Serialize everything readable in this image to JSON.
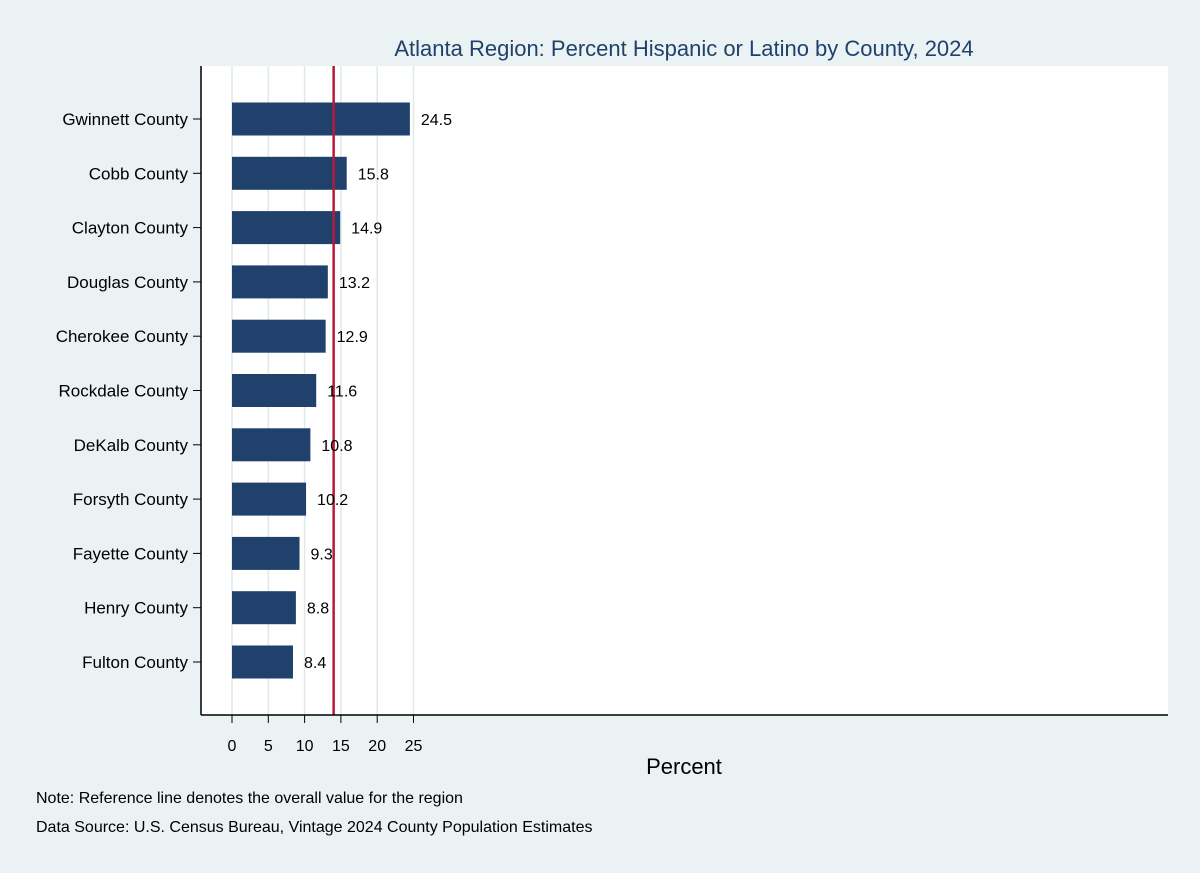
{
  "chart_data": {
    "type": "bar",
    "orientation": "horizontal",
    "title": "Atlanta Region: Percent Hispanic or Latino by County, 2024",
    "xlabel": "Percent",
    "ylabel": "",
    "categories": [
      "Gwinnett County",
      "Cobb County",
      "Clayton County",
      "Douglas County",
      "Cherokee County",
      "Rockdale County",
      "DeKalb County",
      "Forsyth County",
      "Fayette County",
      "Henry County",
      "Fulton County"
    ],
    "values": [
      24.5,
      15.8,
      14.9,
      13.2,
      12.9,
      11.6,
      10.8,
      10.2,
      9.3,
      8.8,
      8.4
    ],
    "data_labels": [
      "24.5",
      "15.8",
      "14.9",
      "13.2",
      "12.9",
      "11.6",
      "10.8",
      "10.2",
      "9.3",
      "8.8",
      "8.4"
    ],
    "xlim": [
      0,
      25
    ],
    "xticks": [
      0,
      5,
      10,
      15,
      20,
      25
    ],
    "reference_line": 14,
    "grid": "vertical",
    "legend": "none",
    "colors": {
      "bar": "#1f416b",
      "reference_line": "#b8183a",
      "background": "#eaf2f3",
      "plot_background": "#ffffff",
      "grid": "#dde9ea",
      "title": "#1f416b"
    }
  },
  "notes": {
    "note": "Note: Reference line denotes the overall value for the region",
    "source": "Data Source: U.S. Census Bureau, Vintage 2024 County Population Estimates"
  }
}
